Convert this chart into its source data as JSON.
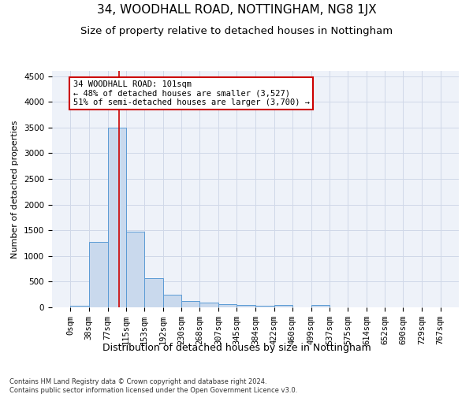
{
  "title": "34, WOODHALL ROAD, NOTTINGHAM, NG8 1JX",
  "subtitle": "Size of property relative to detached houses in Nottingham",
  "xlabel": "Distribution of detached houses by size in Nottingham",
  "ylabel": "Number of detached properties",
  "footer_line1": "Contains HM Land Registry data © Crown copyright and database right 2024.",
  "footer_line2": "Contains public sector information licensed under the Open Government Licence v3.0.",
  "bin_edges": [
    0,
    38,
    77,
    115,
    153,
    192,
    230,
    268,
    307,
    345,
    384,
    422,
    460,
    499,
    537,
    575,
    614,
    652,
    690,
    729,
    767
  ],
  "bar_heights": [
    30,
    1280,
    3500,
    1470,
    570,
    240,
    120,
    85,
    55,
    40,
    25,
    50,
    0,
    40,
    0,
    0,
    0,
    0,
    0,
    0
  ],
  "bar_color": "#c9d9ed",
  "bar_edge_color": "#5b9bd5",
  "grid_color": "#d0d8e8",
  "bg_color": "#eef2f9",
  "property_size": 101,
  "vline_color": "#cc0000",
  "annotation_line1": "34 WOODHALL ROAD: 101sqm",
  "annotation_line2": "← 48% of detached houses are smaller (3,527)",
  "annotation_line3": "51% of semi-detached houses are larger (3,700) →",
  "annotation_box_color": "#ffffff",
  "annotation_box_edge_color": "#cc0000",
  "ylim": [
    0,
    4600
  ],
  "yticks": [
    0,
    500,
    1000,
    1500,
    2000,
    2500,
    3000,
    3500,
    4000,
    4500
  ],
  "title_fontsize": 11,
  "subtitle_fontsize": 9.5,
  "xlabel_fontsize": 9,
  "ylabel_fontsize": 8,
  "tick_fontsize": 7.5,
  "annotation_fontsize": 7.5
}
